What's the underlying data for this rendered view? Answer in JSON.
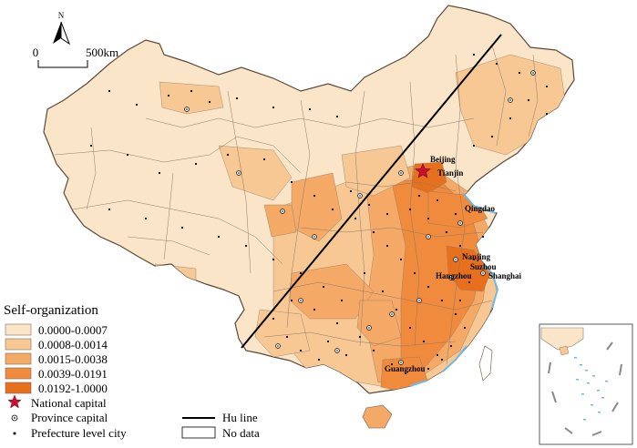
{
  "north_label": "N",
  "scale": {
    "start": "0",
    "end": "500km"
  },
  "legend": {
    "title": "Self-organization",
    "classes": [
      {
        "label": "0.0000-0.0007",
        "color": "#fbe5c8"
      },
      {
        "label": "0.0008-0.0014",
        "color": "#f8c894"
      },
      {
        "label": "0.0015-0.0038",
        "color": "#f5a966"
      },
      {
        "label": "0.0039-0.0191",
        "color": "#f08a3c"
      },
      {
        "label": "0.0192-1.0000",
        "color": "#e6701e"
      }
    ],
    "symbols": {
      "national_capital": "National capital",
      "province_capital": "Province capital",
      "prefecture_city": "Prefecture level city",
      "hu_line": "Hu line",
      "no_data": "No data"
    }
  },
  "cities": {
    "beijing": "Beijing",
    "tianjin": "Tianjin",
    "qingdao": "Qingdao",
    "nanjing": "Nanjing",
    "suzhou": "Suzhou",
    "hangzhou": "Hangzhou",
    "shanghai": "Shanghai",
    "guangzhou": "Guangzhou"
  },
  "colors": {
    "border": "#8c7a66",
    "water": "#6fb9e6",
    "outline": "#5a4a3a"
  }
}
